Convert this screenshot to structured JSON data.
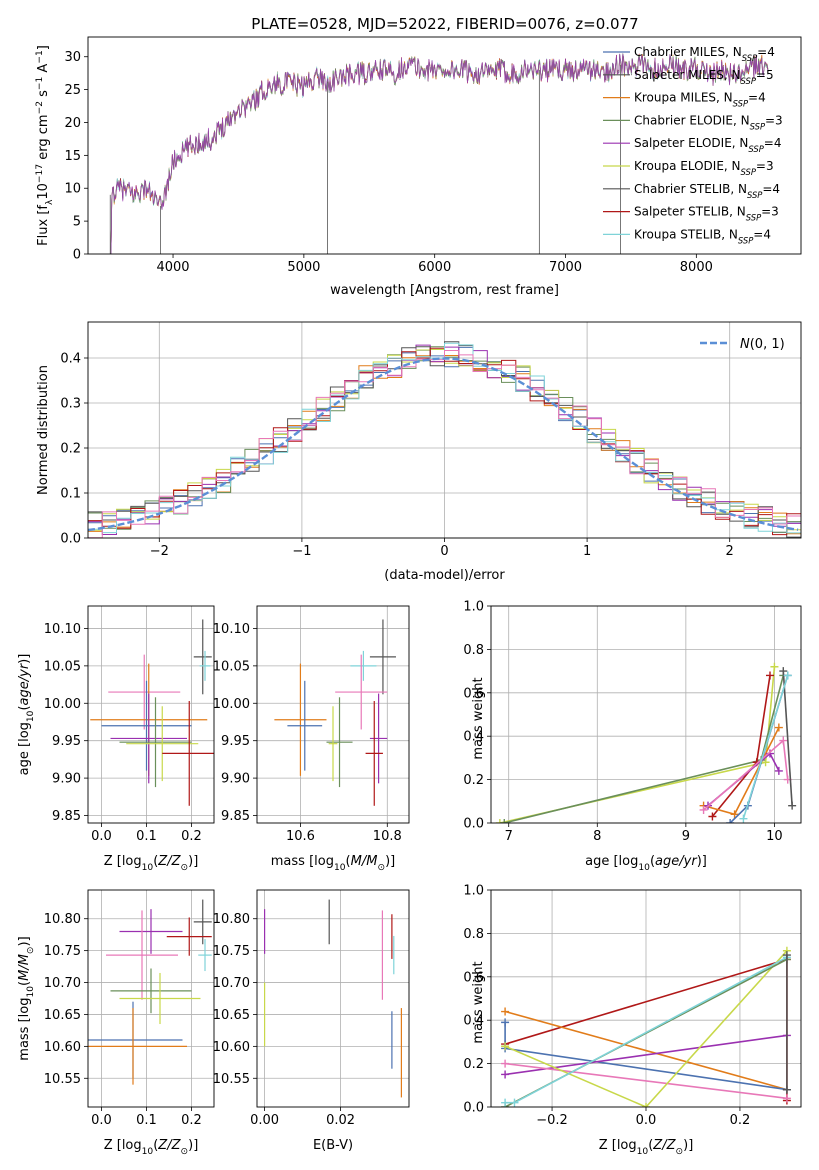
{
  "figure_title": "PLATE=0528, MJD=52022, FIBERID=0076, z=0.077",
  "colors": {
    "c0": "#4c72b0",
    "c1": "#e17c1a",
    "c2": "#6a8f5a",
    "c3": "#9a30b0",
    "c4": "#c8d84a",
    "c5": "#555555",
    "c6": "#b01818",
    "c7": "#7fd3d8",
    "c8": "#e878b8"
  },
  "chart_data": [
    {
      "id": "spectrum",
      "type": "line",
      "title": "PLATE=0528, MJD=52022, FIBERID=0076, z=0.077",
      "xlabel": "wavelength [Angstrom, rest frame]",
      "ylabel": "Flux [f_λ 10^-17 erg cm^-2 s^-1 A^-1]",
      "xlim": [
        3350,
        8800
      ],
      "ylim": [
        0,
        33
      ],
      "xticks": [
        4000,
        5000,
        6000,
        7000,
        8000
      ],
      "yticks": [
        0,
        5,
        10,
        15,
        20,
        25,
        30
      ],
      "legend_position": "top-right",
      "legend": [
        {
          "label": "Chabrier MILES, N_SSP=4",
          "color": "#4c72b0"
        },
        {
          "label": "Salpeter MILES, N_SSP=5",
          "color": "#555555"
        },
        {
          "label": "Kroupa MILES, N_SSP=4",
          "color": "#e17c1a"
        },
        {
          "label": "Chabrier ELODIE, N_SSP=3",
          "color": "#6a8f5a"
        },
        {
          "label": "Salpeter ELODIE, N_SSP=4",
          "color": "#9a30b0"
        },
        {
          "label": "Kroupa ELODIE, N_SSP=3",
          "color": "#c8d84a"
        },
        {
          "label": "Chabrier STELIB, N_SSP=4",
          "color": "#555555"
        },
        {
          "label": "Salpeter STELIB, N_SSP=3",
          "color": "#b01818"
        },
        {
          "label": "Kroupa STELIB, N_SSP=4",
          "color": "#7fd3d8"
        }
      ],
      "continuum": [
        [
          3520,
          9
        ],
        [
          3600,
          10
        ],
        [
          3700,
          9
        ],
        [
          3800,
          10
        ],
        [
          3900,
          7
        ],
        [
          3950,
          10
        ],
        [
          4000,
          14
        ],
        [
          4100,
          16
        ],
        [
          4200,
          17
        ],
        [
          4300,
          17.5
        ],
        [
          4400,
          20
        ],
        [
          4500,
          22
        ],
        [
          4600,
          23
        ],
        [
          4700,
          25
        ],
        [
          4800,
          26
        ],
        [
          4900,
          26
        ],
        [
          5000,
          25.5
        ],
        [
          5100,
          27
        ],
        [
          5200,
          26
        ],
        [
          5300,
          27
        ],
        [
          5400,
          27.5
        ],
        [
          5500,
          27.5
        ],
        [
          5600,
          28
        ],
        [
          5700,
          27.5
        ],
        [
          5800,
          29
        ],
        [
          5900,
          28
        ],
        [
          6000,
          28
        ],
        [
          6100,
          28
        ],
        [
          6200,
          28
        ],
        [
          6300,
          27.5
        ],
        [
          6400,
          27.5
        ],
        [
          6500,
          28
        ],
        [
          6600,
          27.5
        ],
        [
          6700,
          28
        ],
        [
          6800,
          28
        ],
        [
          6900,
          28
        ],
        [
          7000,
          28
        ],
        [
          7100,
          28
        ],
        [
          7200,
          28
        ],
        [
          7300,
          27.5
        ],
        [
          7400,
          29
        ],
        [
          7500,
          28
        ],
        [
          7600,
          29
        ],
        [
          7700,
          28
        ],
        [
          7800,
          29
        ],
        [
          7900,
          28
        ],
        [
          8000,
          28.5
        ],
        [
          8100,
          27
        ],
        [
          8200,
          28
        ],
        [
          8300,
          27
        ],
        [
          8400,
          28
        ],
        [
          8500,
          29
        ],
        [
          8550,
          28
        ]
      ],
      "drops": [
        {
          "x": 3520,
          "to": 0
        },
        {
          "x": 3905,
          "to": 0
        },
        {
          "x": 5180,
          "to": 0
        },
        {
          "x": 6800,
          "to": 0
        },
        {
          "x": 7420,
          "to": 0
        }
      ]
    },
    {
      "id": "residuals",
      "type": "histogram",
      "xlabel": "(data-model)/error",
      "ylabel": "Normed distribution",
      "xlim": [
        -2.5,
        2.5
      ],
      "ylim": [
        0,
        0.48
      ],
      "xticks": [
        -2,
        -1,
        0,
        1,
        2
      ],
      "yticks": [
        0.0,
        0.1,
        0.2,
        0.3,
        0.4
      ],
      "legend_position": "top-right",
      "legend": [
        {
          "label": "N(0,1)",
          "color": "#5b8fd6"
        }
      ],
      "bin_width": 0.1,
      "grid": true
    },
    {
      "id": "age_vs_Z",
      "type": "scatter-errorbar",
      "xlabel": "Z [log10(Z/Z☉)]",
      "ylabel": "age [log10(age/yr)]",
      "xlim": [
        -0.03,
        0.25
      ],
      "ylim": [
        9.84,
        10.13
      ],
      "xticks": [
        0.0,
        0.1,
        0.2
      ],
      "yticks": [
        9.85,
        9.9,
        9.95,
        10.0,
        10.05,
        10.1
      ],
      "points": [
        {
          "x": 0.225,
          "y": 10.062,
          "xerr": 0.02,
          "yerr": 0.05,
          "color": "#555555"
        },
        {
          "x": 0.23,
          "y": 10.05,
          "xerr": 0.012,
          "yerr": 0.02,
          "color": "#7fd3d8"
        },
        {
          "x": 0.095,
          "y": 10.015,
          "xerr": 0.08,
          "yerr": 0.05,
          "color": "#e878b8"
        },
        {
          "x": 0.105,
          "y": 9.978,
          "xerr": 0.13,
          "yerr": 0.075,
          "color": "#e17c1a"
        },
        {
          "x": 0.1,
          "y": 9.97,
          "xerr": 0.1,
          "yerr": 0.06,
          "color": "#4c72b0"
        },
        {
          "x": 0.105,
          "y": 9.953,
          "xerr": 0.085,
          "yerr": 0.06,
          "color": "#9a30b0"
        },
        {
          "x": 0.12,
          "y": 9.948,
          "xerr": 0.08,
          "yerr": 0.06,
          "color": "#6a8f5a"
        },
        {
          "x": 0.135,
          "y": 9.946,
          "xerr": 0.08,
          "yerr": 0.05,
          "color": "#c8d84a"
        },
        {
          "x": 0.195,
          "y": 9.933,
          "xerr": 0.06,
          "yerr": 0.07,
          "color": "#b01818"
        }
      ]
    },
    {
      "id": "age_vs_mass",
      "type": "scatter-errorbar",
      "xlabel": "mass [log10(M/M☉)]",
      "ylabel": "",
      "xlim": [
        10.5,
        10.85
      ],
      "ylim": [
        9.84,
        10.13
      ],
      "xticks": [
        10.6,
        10.8
      ],
      "yticks": [
        9.85,
        9.9,
        9.95,
        10.0,
        10.05,
        10.1
      ],
      "points": [
        {
          "x": 10.79,
          "y": 10.062,
          "xerr": 0.03,
          "yerr": 0.05,
          "color": "#555555"
        },
        {
          "x": 10.745,
          "y": 10.05,
          "xerr": 0.03,
          "yerr": 0.02,
          "color": "#7fd3d8"
        },
        {
          "x": 10.74,
          "y": 10.015,
          "xerr": 0.06,
          "yerr": 0.05,
          "color": "#e878b8"
        },
        {
          "x": 10.6,
          "y": 9.978,
          "xerr": 0.06,
          "yerr": 0.075,
          "color": "#e17c1a"
        },
        {
          "x": 10.61,
          "y": 9.97,
          "xerr": 0.04,
          "yerr": 0.06,
          "color": "#4c72b0"
        },
        {
          "x": 10.78,
          "y": 9.953,
          "xerr": 0.02,
          "yerr": 0.06,
          "color": "#9a30b0"
        },
        {
          "x": 10.69,
          "y": 9.948,
          "xerr": 0.03,
          "yerr": 0.06,
          "color": "#6a8f5a"
        },
        {
          "x": 10.675,
          "y": 9.946,
          "xerr": 0.01,
          "yerr": 0.05,
          "color": "#c8d84a"
        },
        {
          "x": 10.77,
          "y": 9.933,
          "xerr": 0.02,
          "yerr": 0.07,
          "color": "#b01818"
        }
      ]
    },
    {
      "id": "weight_vs_age",
      "type": "line",
      "xlabel": "age [log10(age/yr)]",
      "ylabel": "mass weight",
      "xlim": [
        6.8,
        10.3
      ],
      "ylim": [
        0,
        1
      ],
      "xticks": [
        7,
        8,
        9,
        10
      ],
      "yticks": [
        0.0,
        0.2,
        0.4,
        0.6,
        0.8,
        1.0
      ],
      "series": [
        {
          "color": "#c8d84a",
          "points": [
            [
              6.9,
              0.0
            ],
            [
              9.9,
              0.28
            ],
            [
              10.0,
              0.72
            ]
          ]
        },
        {
          "color": "#6a8f5a",
          "points": [
            [
              6.95,
              0.0
            ],
            [
              9.85,
              0.29
            ],
            [
              10.1,
              0.68
            ]
          ]
        },
        {
          "color": "#b01818",
          "points": [
            [
              9.3,
              0.03
            ],
            [
              9.8,
              0.28
            ],
            [
              9.95,
              0.68
            ]
          ]
        },
        {
          "color": "#e17c1a",
          "points": [
            [
              9.2,
              0.08
            ],
            [
              9.55,
              0.04
            ],
            [
              10.05,
              0.44
            ]
          ]
        },
        {
          "color": "#4c72b0",
          "points": [
            [
              9.5,
              0.0
            ],
            [
              9.7,
              0.08
            ],
            [
              10.15,
              0.68
            ]
          ]
        },
        {
          "color": "#9a30b0",
          "points": [
            [
              9.25,
              0.08
            ],
            [
              9.95,
              0.32
            ],
            [
              10.05,
              0.24
            ]
          ]
        },
        {
          "color": "#e878b8",
          "points": [
            [
              9.2,
              0.06
            ],
            [
              10.1,
              0.38
            ],
            [
              10.15,
              0.2
            ]
          ]
        },
        {
          "color": "#555555",
          "points": [
            [
              10.1,
              0.7
            ],
            [
              10.2,
              0.08
            ]
          ]
        },
        {
          "color": "#7fd3d8",
          "points": [
            [
              9.65,
              0.02
            ],
            [
              10.15,
              0.68
            ]
          ]
        }
      ]
    },
    {
      "id": "mass_vs_Z",
      "type": "scatter-errorbar",
      "xlabel": "Z [log10(Z/Z☉)]",
      "ylabel": "mass [log10(M/M☉)]",
      "xlim": [
        -0.03,
        0.25
      ],
      "ylim": [
        10.505,
        10.845
      ],
      "xticks": [
        0.0,
        0.1,
        0.2
      ],
      "yticks": [
        10.55,
        10.6,
        10.65,
        10.7,
        10.75,
        10.8
      ],
      "points": [
        {
          "x": 0.225,
          "y": 10.795,
          "xerr": 0.02,
          "yerr": 0.035,
          "color": "#555555"
        },
        {
          "x": 0.11,
          "y": 10.78,
          "xerr": 0.07,
          "yerr": 0.035,
          "color": "#9a30b0"
        },
        {
          "x": 0.195,
          "y": 10.772,
          "xerr": 0.05,
          "yerr": 0.03,
          "color": "#b01818"
        },
        {
          "x": 0.09,
          "y": 10.743,
          "xerr": 0.08,
          "yerr": 0.07,
          "color": "#e878b8"
        },
        {
          "x": 0.23,
          "y": 10.743,
          "xerr": 0.015,
          "yerr": 0.025,
          "color": "#7fd3d8"
        },
        {
          "x": 0.11,
          "y": 10.687,
          "xerr": 0.09,
          "yerr": 0.035,
          "color": "#6a8f5a"
        },
        {
          "x": 0.13,
          "y": 10.675,
          "xerr": 0.09,
          "yerr": 0.04,
          "color": "#c8d84a"
        },
        {
          "x": 0.07,
          "y": 10.61,
          "xerr": 0.11,
          "yerr": 0.06,
          "color": "#4c72b0"
        },
        {
          "x": 0.07,
          "y": 10.6,
          "xerr": 0.12,
          "yerr": 0.06,
          "color": "#e17c1a"
        }
      ]
    },
    {
      "id": "mass_vs_ebv",
      "type": "scatter-errorbar",
      "xlabel": "E(B-V)",
      "ylabel": "",
      "xlim": [
        -0.002,
        0.038
      ],
      "ylim": [
        10.505,
        10.845
      ],
      "xticks": [
        0.0,
        0.02
      ],
      "yticks": [
        10.55,
        10.6,
        10.65,
        10.7,
        10.75,
        10.8
      ],
      "points": [
        {
          "x": 0.0,
          "y": 10.78,
          "xerr": 0.0,
          "yerr": 0.035,
          "color": "#9a30b0"
        },
        {
          "x": 0.0,
          "y": 10.65,
          "xerr": 0.0,
          "yerr": 0.05,
          "color": "#c8d84a"
        },
        {
          "x": 0.017,
          "y": 10.795,
          "xerr": 0.0,
          "yerr": 0.035,
          "color": "#555555"
        },
        {
          "x": 0.031,
          "y": 10.743,
          "xerr": 0.0,
          "yerr": 0.07,
          "color": "#e878b8"
        },
        {
          "x": 0.0335,
          "y": 10.772,
          "xerr": 0.0,
          "yerr": 0.035,
          "color": "#b01818"
        },
        {
          "x": 0.034,
          "y": 10.743,
          "xerr": 0.0,
          "yerr": 0.03,
          "color": "#7fd3d8"
        },
        {
          "x": 0.0335,
          "y": 10.61,
          "xerr": 0.0,
          "yerr": 0.045,
          "color": "#4c72b0"
        },
        {
          "x": 0.036,
          "y": 10.59,
          "xerr": 0.0,
          "yerr": 0.07,
          "color": "#e17c1a"
        }
      ]
    },
    {
      "id": "weight_vs_Z",
      "type": "line",
      "xlabel": "Z [log10(Z/Z☉)]",
      "ylabel": "mass weight",
      "xlim": [
        -0.33,
        0.33
      ],
      "ylim": [
        0,
        1
      ],
      "xticks": [
        -0.2,
        0.0,
        0.2
      ],
      "yticks": [
        0.0,
        0.2,
        0.4,
        0.6,
        0.8,
        1.0
      ],
      "series": [
        {
          "color": "#b01818",
          "points": [
            [
              -0.3,
              0.29
            ],
            [
              0.3,
              0.68
            ],
            [
              0.3,
              0.03
            ]
          ]
        },
        {
          "color": "#e17c1a",
          "points": [
            [
              -0.3,
              0.44
            ],
            [
              0.3,
              0.08
            ]
          ]
        },
        {
          "color": "#4c72b0",
          "points": [
            [
              -0.3,
              0.39
            ],
            [
              -0.3,
              0.27
            ],
            [
              0.3,
              0.08
            ]
          ]
        },
        {
          "color": "#9a30b0",
          "points": [
            [
              -0.3,
              0.15
            ],
            [
              0.3,
              0.33
            ]
          ]
        },
        {
          "color": "#e878b8",
          "points": [
            [
              -0.3,
              0.2
            ],
            [
              0.3,
              0.04
            ]
          ]
        },
        {
          "color": "#c8d84a",
          "points": [
            [
              -0.3,
              0.28
            ],
            [
              0.0,
              0.0
            ],
            [
              0.3,
              0.72
            ]
          ]
        },
        {
          "color": "#6a8f5a",
          "points": [
            [
              -0.3,
              0.0
            ],
            [
              0.3,
              0.68
            ]
          ]
        },
        {
          "color": "#7fd3d8",
          "points": [
            [
              -0.3,
              0.02
            ],
            [
              -0.28,
              0.02
            ],
            [
              0.3,
              0.69
            ]
          ]
        },
        {
          "color": "#555555",
          "points": [
            [
              0.3,
              0.7
            ],
            [
              0.3,
              0.08
            ]
          ]
        }
      ]
    }
  ]
}
